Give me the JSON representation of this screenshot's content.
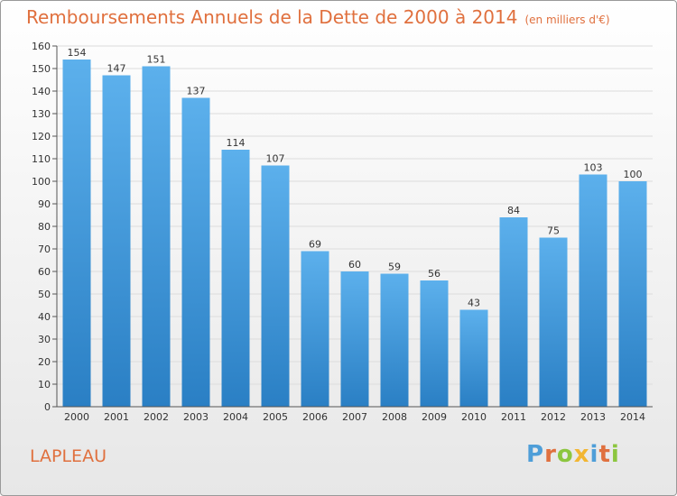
{
  "title": "Remboursements Annuels de la Dette de 2000 à 2014",
  "unit_note": "(en milliers d'€)",
  "commune": "LAPLEAU",
  "logo": {
    "text": "Proxiti",
    "letters": [
      {
        "ch": "P",
        "color": "#4e9ed8"
      },
      {
        "ch": "r",
        "color": "#e0703e"
      },
      {
        "ch": "o",
        "color": "#8cc63f"
      },
      {
        "ch": "x",
        "color": "#f2b632"
      },
      {
        "ch": "i",
        "color": "#4e9ed8"
      },
      {
        "ch": "t",
        "color": "#e0703e"
      },
      {
        "ch": "i",
        "color": "#8cc63f"
      }
    ]
  },
  "chart_data": {
    "type": "bar",
    "categories": [
      "2000",
      "2001",
      "2002",
      "2003",
      "2004",
      "2005",
      "2006",
      "2007",
      "2008",
      "2009",
      "2010",
      "2011",
      "2012",
      "2013",
      "2014"
    ],
    "values": [
      154,
      147,
      151,
      137,
      114,
      107,
      69,
      60,
      59,
      56,
      43,
      84,
      75,
      103,
      100
    ],
    "data_labels": [
      "154",
      "147",
      "151",
      "137",
      "114",
      "107",
      "69",
      "60",
      "59",
      "56",
      "43",
      "84",
      "75",
      "103",
      "100"
    ],
    "y_ticks": [
      0,
      10,
      20,
      30,
      40,
      50,
      60,
      70,
      80,
      90,
      100,
      110,
      120,
      130,
      140,
      150,
      160
    ],
    "ylim": [
      0,
      160
    ],
    "grid": true,
    "colors": {
      "bar_top": "#5cb0ec",
      "bar_bottom": "#2a7fc4",
      "title": "#e0703e"
    }
  }
}
